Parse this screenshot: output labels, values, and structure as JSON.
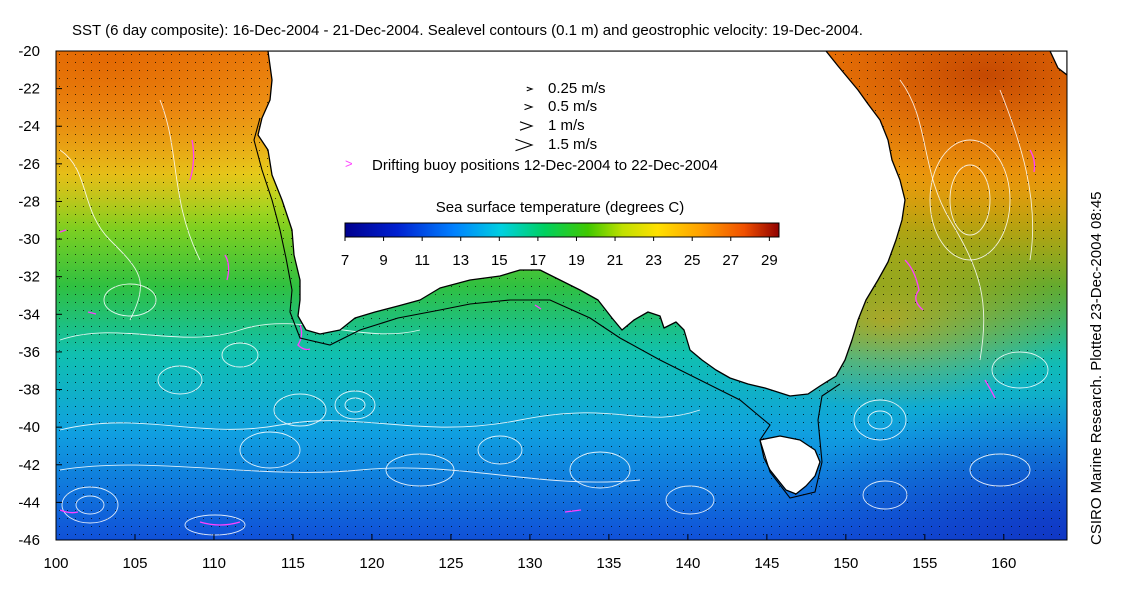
{
  "title": "SST (6 day composite): 16-Dec-2004 - 21-Dec-2004. Sealevel contours (0.1 m) and geostrophic velocity: 19-Dec-2004.",
  "credit": "CSIRO Marine Research. Plotted 23-Dec-2004 08:45",
  "axes": {
    "x_ticks": [
      "100",
      "105",
      "110",
      "115",
      "120",
      "125",
      "130",
      "135",
      "140",
      "145",
      "150",
      "155",
      "160"
    ],
    "y_ticks": [
      "-20",
      "-22",
      "-24",
      "-26",
      "-28",
      "-30",
      "-32",
      "-34",
      "-36",
      "-38",
      "-40",
      "-42",
      "-44",
      "-46"
    ],
    "xlim": [
      100,
      164
    ],
    "ylim": [
      -46,
      -20
    ]
  },
  "velocity_legend": [
    {
      "label": "0.25 m/s",
      "speed": 0.25
    },
    {
      "label": "0.5 m/s",
      "speed": 0.5
    },
    {
      "label": "1 m/s",
      "speed": 1
    },
    {
      "label": "1.5 m/s",
      "speed": 1.5
    }
  ],
  "buoy_legend": "Drifting buoy positions 12-Dec-2004 to 22-Dec-2004",
  "colorbar": {
    "title": "Sea surface temperature (degrees C)",
    "ticks": [
      "7",
      "9",
      "11",
      "13",
      "15",
      "17",
      "19",
      "21",
      "23",
      "25",
      "27",
      "29"
    ],
    "range": [
      7,
      29.5
    ]
  },
  "colors": {
    "land": "#ffffff",
    "coast": "#000000",
    "contour": "#ffffff",
    "buoy": "#ff40ff"
  }
}
